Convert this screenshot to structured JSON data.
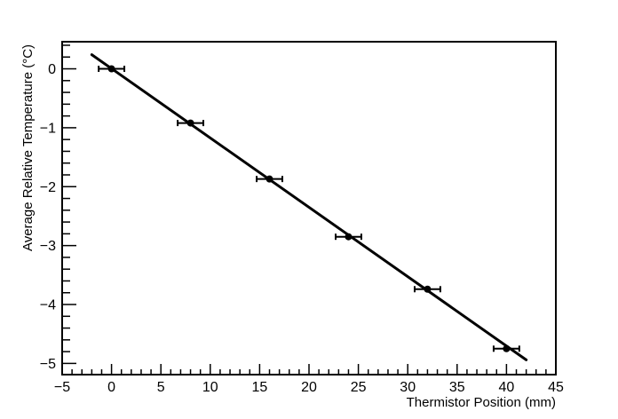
{
  "chart_data": {
    "type": "scatter",
    "title": "",
    "xlabel": "Thermistor Position (mm)",
    "ylabel": "Average Relative Temperature (°C)",
    "xlim": [
      -5,
      45
    ],
    "ylim": [
      -5.19,
      0.46
    ],
    "x_major_ticks": [
      -5,
      0,
      5,
      10,
      15,
      20,
      25,
      30,
      35,
      40,
      45
    ],
    "x_minor_step": 1,
    "y_major_ticks": [
      -5,
      -4,
      -3,
      -2,
      -1,
      0
    ],
    "y_minor_step": 0.2,
    "grid": false,
    "legend": false,
    "points": [
      {
        "x": 0,
        "y": 0.0,
        "xerr": 1.3
      },
      {
        "x": 8,
        "y": -0.92,
        "xerr": 1.3
      },
      {
        "x": 16,
        "y": -1.87,
        "xerr": 1.3
      },
      {
        "x": 24,
        "y": -2.85,
        "xerr": 1.3
      },
      {
        "x": 32,
        "y": -3.74,
        "xerr": 1.3
      },
      {
        "x": 40,
        "y": -4.75,
        "xerr": 1.3
      }
    ],
    "fit_line": {
      "x1": -2,
      "y1": 0.24,
      "x2": 42,
      "y2": -4.94
    },
    "colors": {
      "marker": "#000000",
      "error_bar": "#000000",
      "fit_line": "#000000",
      "axis": "#000000",
      "background": "#ffffff"
    }
  }
}
